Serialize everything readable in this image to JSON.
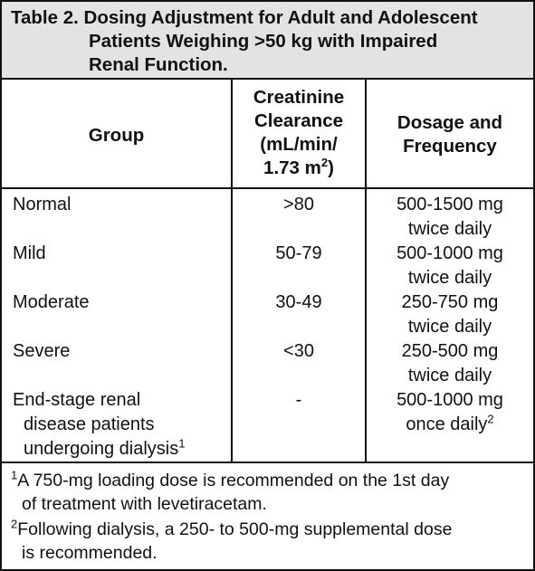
{
  "title": {
    "line1": "Table 2. Dosing Adjustment for Adult and Adolescent",
    "line2": "Patients Weighing >50 kg with Impaired",
    "line3": "Renal Function."
  },
  "headers": {
    "group": "Group",
    "clearance": [
      "Creatinine",
      "Clearance",
      "(mL/min/",
      "1.73 m",
      "2",
      ")"
    ],
    "dosage": [
      "Dosage and",
      "Frequency"
    ]
  },
  "rows": [
    {
      "group": [
        "Normal"
      ],
      "clearance": ">80",
      "dosage": [
        "500-1500 mg",
        "twice daily"
      ]
    },
    {
      "group": [
        "Mild"
      ],
      "clearance": "50-79",
      "dosage": [
        "500-1000 mg",
        "twice daily"
      ]
    },
    {
      "group": [
        "Moderate"
      ],
      "clearance": "30-49",
      "dosage": [
        "250-750 mg",
        "twice daily"
      ]
    },
    {
      "group": [
        "Severe"
      ],
      "clearance": "<30",
      "dosage": [
        "250-500 mg",
        "twice daily"
      ]
    },
    {
      "group": [
        "End-stage renal",
        "disease patients",
        "undergoing dialysis"
      ],
      "group_sup": "1",
      "clearance": "-",
      "dosage": [
        "500-1000 mg",
        "once daily"
      ],
      "dosage_sup": "2"
    }
  ],
  "footnotes": [
    {
      "mark": "1",
      "lines": [
        "A 750-mg loading dose is recommended on the 1st day",
        "of treatment with levetiracetam."
      ]
    },
    {
      "mark": "2",
      "lines": [
        "Following dialysis, a 250- to 500-mg supplemental dose",
        "is recommended."
      ]
    }
  ]
}
